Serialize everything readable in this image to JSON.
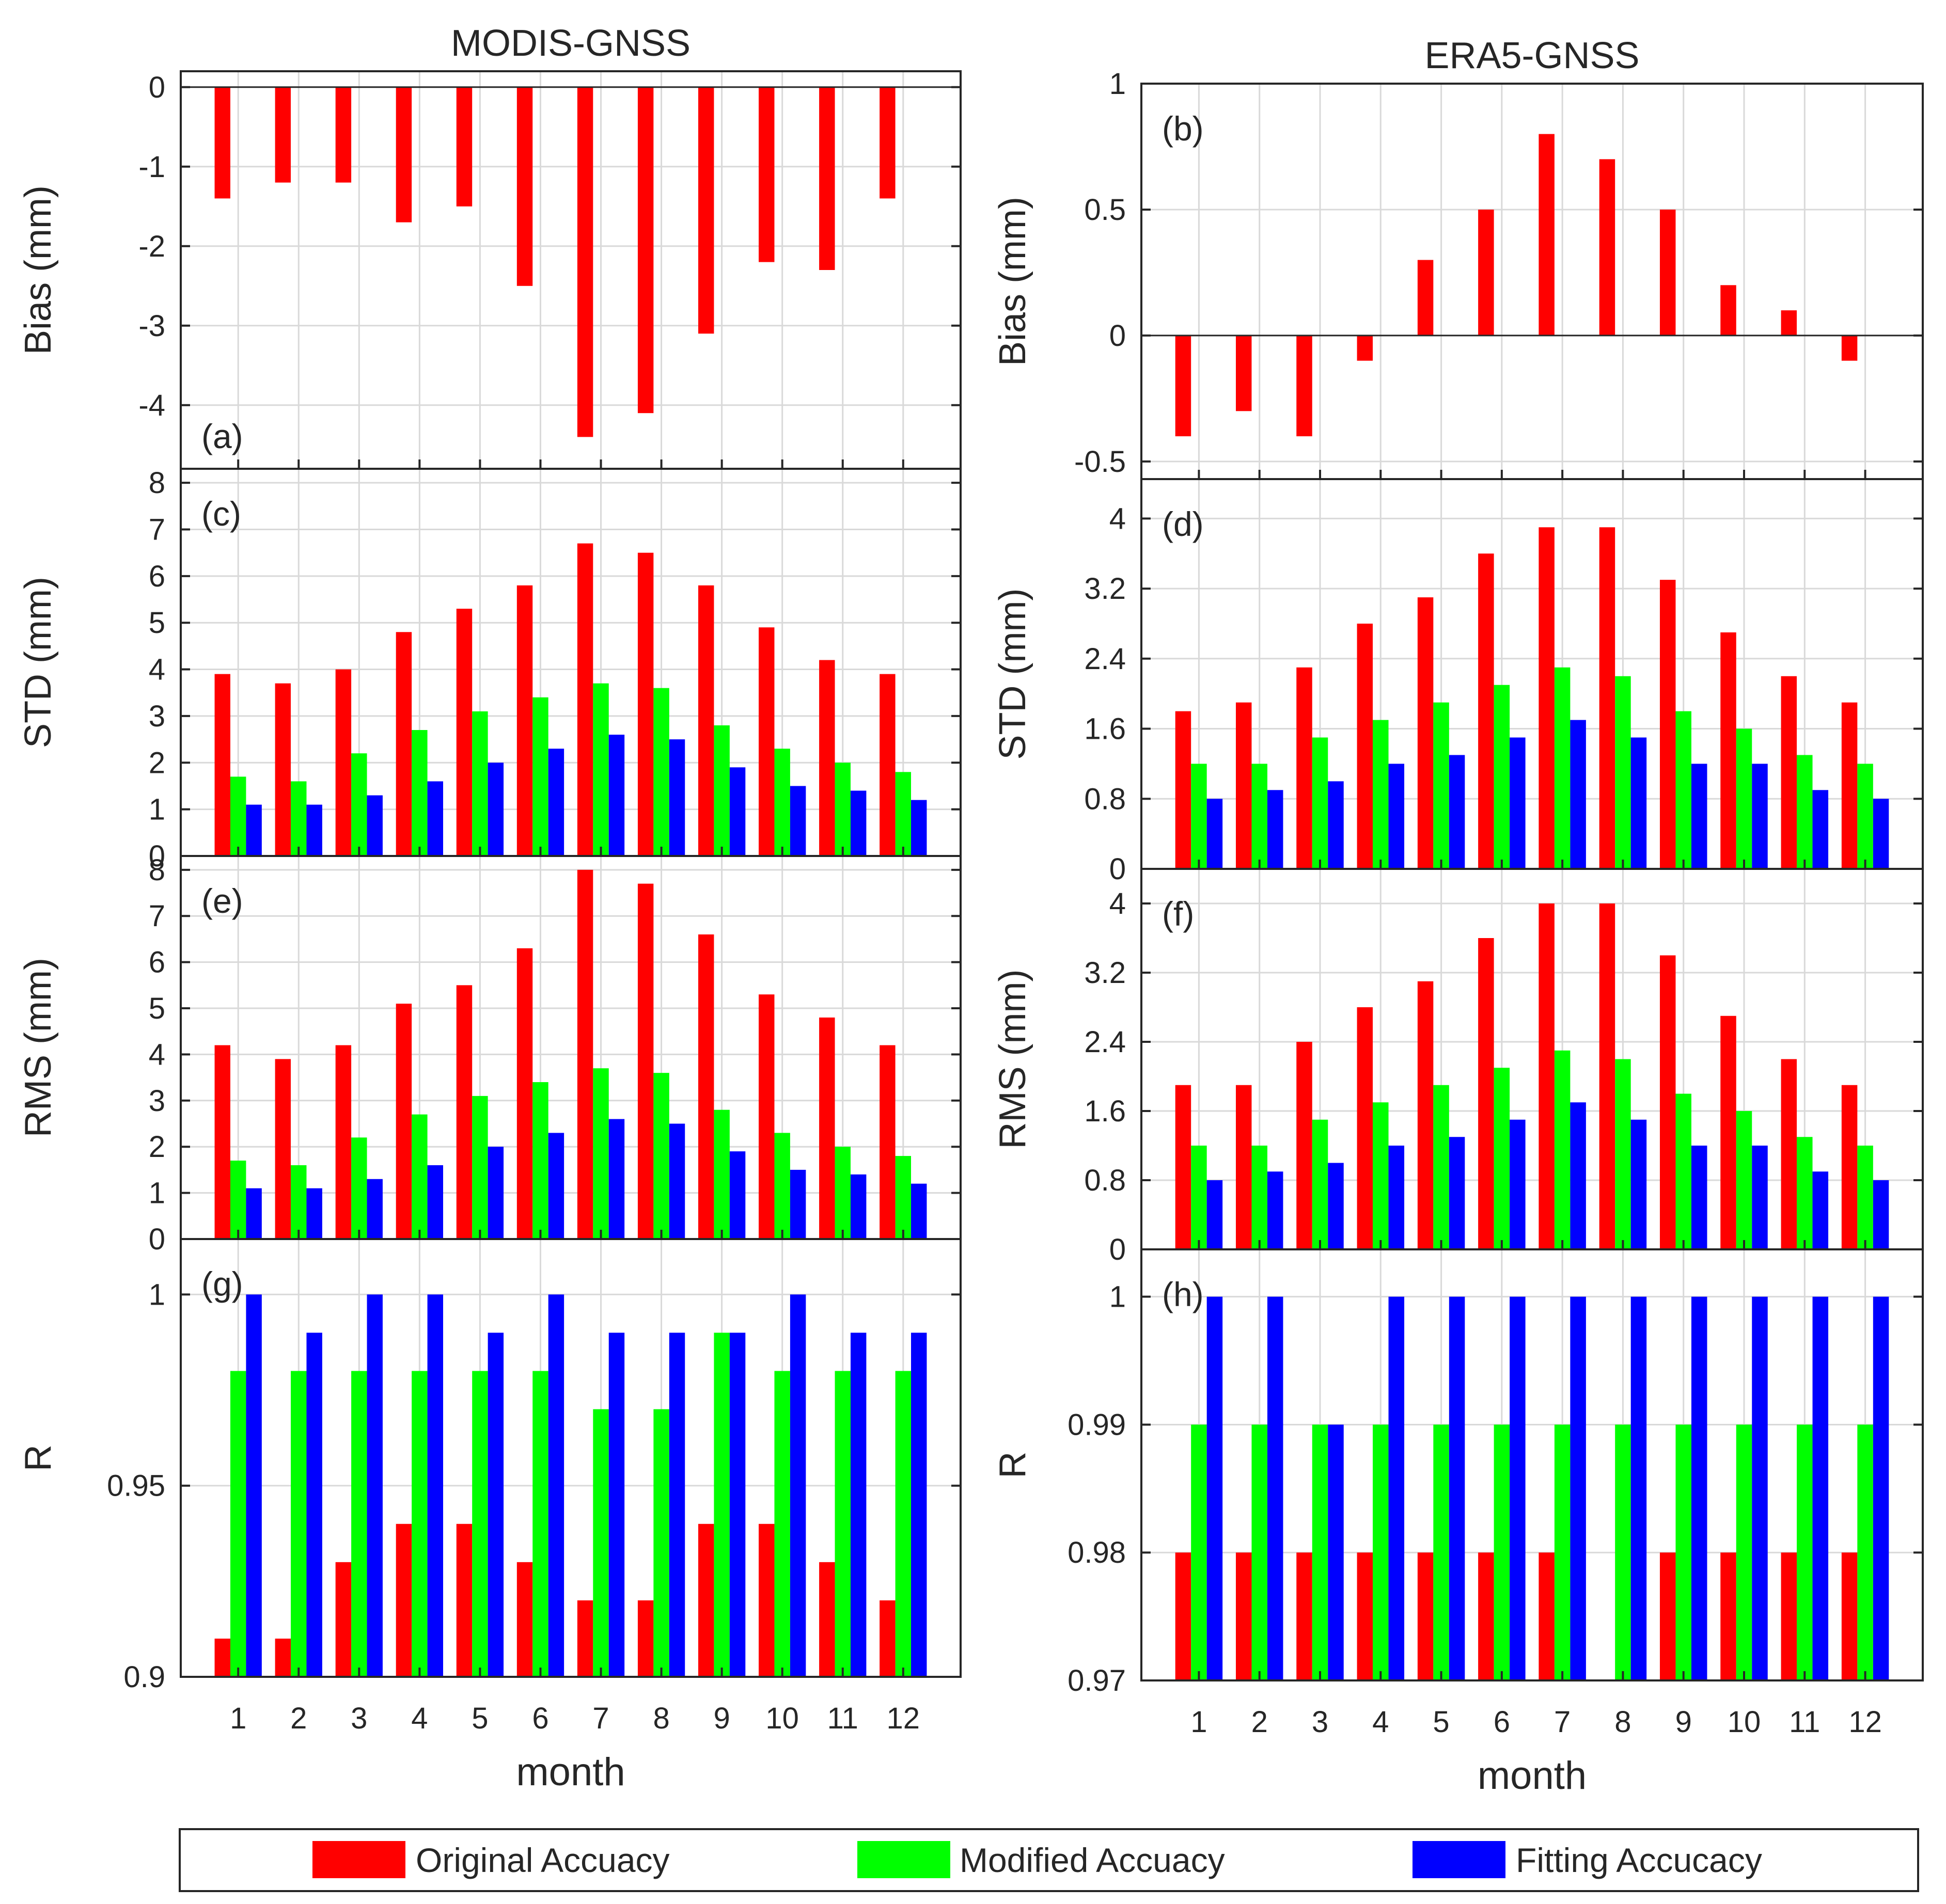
{
  "legend": {
    "items": [
      {
        "label": "Original Accuacy",
        "color": "#ff0000"
      },
      {
        "label": "Modified Accuacy",
        "color": "#00ff00"
      },
      {
        "label": "Fitting Accucacy",
        "color": "#0000ff"
      }
    ]
  },
  "chart_data": [
    {
      "type": "bar",
      "id": "a",
      "panel_label": "(a)",
      "column_title": "MODIS-GNSS",
      "ylabel": "Bias (mm)",
      "xlabel": "month",
      "categories": [
        1,
        2,
        3,
        4,
        5,
        6,
        7,
        8,
        9,
        10,
        11,
        12
      ],
      "ylim": [
        -4.8,
        0.2
      ],
      "yticks": [
        0,
        -1,
        -2,
        -3,
        -4
      ],
      "ytick_labels": [
        "0",
        "-1",
        "-2",
        "-3",
        "-4"
      ],
      "series": [
        {
          "name": "Original Accuacy",
          "values": [
            -1.4,
            -1.2,
            -1.2,
            -1.7,
            -1.5,
            -2.5,
            -4.4,
            -4.1,
            -3.1,
            -2.2,
            -2.3,
            -1.4
          ]
        },
        {
          "name": "Modified Accuacy",
          "values": [
            0,
            0,
            0,
            0,
            0,
            0,
            0,
            0,
            0,
            0,
            0,
            0
          ]
        },
        {
          "name": "Fitting Accucacy",
          "values": [
            0,
            0,
            0,
            0,
            0,
            0,
            0,
            0,
            0,
            0,
            0,
            0
          ]
        }
      ]
    },
    {
      "type": "bar",
      "id": "b",
      "panel_label": "(b)",
      "column_title": "ERA5-GNSS",
      "ylabel": "Bias (mm)",
      "xlabel": "month",
      "categories": [
        1,
        2,
        3,
        4,
        5,
        6,
        7,
        8,
        9,
        10,
        11,
        12
      ],
      "ylim": [
        -0.57,
        1.0
      ],
      "yticks": [
        1,
        0.5,
        0,
        -0.5
      ],
      "ytick_labels": [
        "1",
        "0.5",
        "0",
        "-0.5"
      ],
      "series": [
        {
          "name": "Original Accuacy",
          "values": [
            -0.4,
            -0.3,
            -0.4,
            -0.1,
            0.3,
            0.5,
            0.8,
            0.7,
            0.5,
            0.2,
            0.1,
            -0.1
          ]
        },
        {
          "name": "Modified Accuacy",
          "values": [
            0,
            0,
            0,
            0,
            0,
            0,
            0,
            0,
            0,
            0,
            0,
            0
          ]
        },
        {
          "name": "Fitting Accucacy",
          "values": [
            0,
            0,
            0,
            0,
            0,
            0,
            0,
            0,
            0,
            0,
            0,
            0
          ]
        }
      ]
    },
    {
      "type": "bar",
      "id": "c",
      "panel_label": "(c)",
      "ylabel": "STD (mm)",
      "categories": [
        1,
        2,
        3,
        4,
        5,
        6,
        7,
        8,
        9,
        10,
        11,
        12
      ],
      "ylim": [
        0,
        8.3
      ],
      "yticks": [
        0,
        1,
        2,
        3,
        4,
        5,
        6,
        7,
        8
      ],
      "ytick_labels": [
        "0",
        "1",
        "2",
        "3",
        "4",
        "5",
        "6",
        "7",
        "8"
      ],
      "series": [
        {
          "name": "Original Accuacy",
          "values": [
            3.9,
            3.7,
            4.0,
            4.8,
            5.3,
            5.8,
            6.7,
            6.5,
            5.8,
            4.9,
            4.2,
            3.9
          ]
        },
        {
          "name": "Modified Accuacy",
          "values": [
            1.7,
            1.6,
            2.2,
            2.7,
            3.1,
            3.4,
            3.7,
            3.6,
            2.8,
            2.3,
            2.0,
            1.8
          ]
        },
        {
          "name": "Fitting Accucacy",
          "values": [
            1.1,
            1.1,
            1.3,
            1.6,
            2.0,
            2.3,
            2.6,
            2.5,
            1.9,
            1.5,
            1.4,
            1.2
          ]
        }
      ]
    },
    {
      "type": "bar",
      "id": "d",
      "panel_label": "(d)",
      "ylabel": "STD (mm)",
      "categories": [
        1,
        2,
        3,
        4,
        5,
        6,
        7,
        8,
        9,
        10,
        11,
        12
      ],
      "ylim": [
        0,
        4.45
      ],
      "yticks": [
        0,
        0.8,
        1.6,
        2.4,
        3.2,
        4
      ],
      "ytick_labels": [
        "0",
        "0.8",
        "1.6",
        "2.4",
        "3.2",
        "4"
      ],
      "series": [
        {
          "name": "Original Accuacy",
          "values": [
            1.8,
            1.9,
            2.3,
            2.8,
            3.1,
            3.6,
            3.9,
            3.9,
            3.3,
            2.7,
            2.2,
            1.9
          ]
        },
        {
          "name": "Modified Accuacy",
          "values": [
            1.2,
            1.2,
            1.5,
            1.7,
            1.9,
            2.1,
            2.3,
            2.2,
            1.8,
            1.6,
            1.3,
            1.2
          ]
        },
        {
          "name": "Fitting Accucacy",
          "values": [
            0.8,
            0.9,
            1.0,
            1.2,
            1.3,
            1.5,
            1.7,
            1.5,
            1.2,
            1.2,
            0.9,
            0.8
          ]
        }
      ]
    },
    {
      "type": "bar",
      "id": "e",
      "panel_label": "(e)",
      "ylabel": "RMS (mm)",
      "categories": [
        1,
        2,
        3,
        4,
        5,
        6,
        7,
        8,
        9,
        10,
        11,
        12
      ],
      "ylim": [
        0,
        8.3
      ],
      "yticks": [
        0,
        1,
        2,
        3,
        4,
        5,
        6,
        7,
        8
      ],
      "ytick_labels": [
        "0",
        "1",
        "2",
        "3",
        "4",
        "5",
        "6",
        "7",
        "8"
      ],
      "series": [
        {
          "name": "Original Accuacy",
          "values": [
            4.2,
            3.9,
            4.2,
            5.1,
            5.5,
            6.3,
            8.0,
            7.7,
            6.6,
            5.3,
            4.8,
            4.2
          ]
        },
        {
          "name": "Modified Accuacy",
          "values": [
            1.7,
            1.6,
            2.2,
            2.7,
            3.1,
            3.4,
            3.7,
            3.6,
            2.8,
            2.3,
            2.0,
            1.8
          ]
        },
        {
          "name": "Fitting Accucacy",
          "values": [
            1.1,
            1.1,
            1.3,
            1.6,
            2.0,
            2.3,
            2.6,
            2.5,
            1.9,
            1.5,
            1.4,
            1.2
          ]
        }
      ]
    },
    {
      "type": "bar",
      "id": "f",
      "panel_label": "(f)",
      "ylabel": "RMS (mm)",
      "categories": [
        1,
        2,
        3,
        4,
        5,
        6,
        7,
        8,
        9,
        10,
        11,
        12
      ],
      "ylim": [
        0,
        4.4
      ],
      "yticks": [
        0,
        0.8,
        1.6,
        2.4,
        3.2,
        4
      ],
      "ytick_labels": [
        "0",
        "0.8",
        "1.6",
        "2.4",
        "3.2",
        "4"
      ],
      "series": [
        {
          "name": "Original Accuacy",
          "values": [
            1.9,
            1.9,
            2.4,
            2.8,
            3.1,
            3.6,
            4.0,
            4.0,
            3.4,
            2.7,
            2.2,
            1.9
          ]
        },
        {
          "name": "Modified Accuacy",
          "values": [
            1.2,
            1.2,
            1.5,
            1.7,
            1.9,
            2.1,
            2.3,
            2.2,
            1.8,
            1.6,
            1.3,
            1.2
          ]
        },
        {
          "name": "Fitting Accucacy",
          "values": [
            0.8,
            0.9,
            1.0,
            1.2,
            1.3,
            1.5,
            1.7,
            1.5,
            1.2,
            1.2,
            0.9,
            0.8
          ]
        }
      ]
    },
    {
      "type": "bar",
      "id": "g",
      "panel_label": "(g)",
      "ylabel": "R",
      "xlabel": "month",
      "categories": [
        1,
        2,
        3,
        4,
        5,
        6,
        7,
        8,
        9,
        10,
        11,
        12
      ],
      "ylim": [
        0.9,
        1.0145
      ],
      "yticks": [
        0.9,
        0.95,
        1
      ],
      "ytick_labels": [
        "0.9",
        "0.95",
        "1"
      ],
      "series": [
        {
          "name": "Original Accuacy",
          "values": [
            0.91,
            0.91,
            0.93,
            0.94,
            0.94,
            0.93,
            0.92,
            0.92,
            0.94,
            0.94,
            0.93,
            0.92
          ]
        },
        {
          "name": "Modified Accuacy",
          "values": [
            0.98,
            0.98,
            0.98,
            0.98,
            0.98,
            0.98,
            0.97,
            0.97,
            0.99,
            0.98,
            0.98,
            0.98
          ]
        },
        {
          "name": "Fitting Accucacy",
          "values": [
            1.0,
            0.99,
            1.0,
            1.0,
            0.99,
            1.0,
            0.99,
            0.99,
            0.99,
            1.0,
            0.99,
            0.99
          ]
        }
      ]
    },
    {
      "type": "bar",
      "id": "h",
      "panel_label": "(h)",
      "ylabel": "R",
      "xlabel": "month",
      "categories": [
        1,
        2,
        3,
        4,
        5,
        6,
        7,
        8,
        9,
        10,
        11,
        12
      ],
      "ylim": [
        0.97,
        1.0037
      ],
      "yticks": [
        0.97,
        0.98,
        0.99,
        1
      ],
      "ytick_labels": [
        "0.97",
        "0.98",
        "0.99",
        "1"
      ],
      "series": [
        {
          "name": "Original Accuacy",
          "values": [
            0.98,
            0.98,
            0.98,
            0.98,
            0.98,
            0.98,
            0.98,
            0.97,
            0.98,
            0.98,
            0.98,
            0.98
          ]
        },
        {
          "name": "Modified Accuacy",
          "values": [
            0.99,
            0.99,
            0.99,
            0.99,
            0.99,
            0.99,
            0.99,
            0.99,
            0.99,
            0.99,
            0.99,
            0.99
          ]
        },
        {
          "name": "Fitting Accucacy",
          "values": [
            1.0,
            1.0,
            0.99,
            1.0,
            1.0,
            1.0,
            1.0,
            1.0,
            1.0,
            1.0,
            1.0,
            1.0
          ]
        }
      ]
    }
  ]
}
